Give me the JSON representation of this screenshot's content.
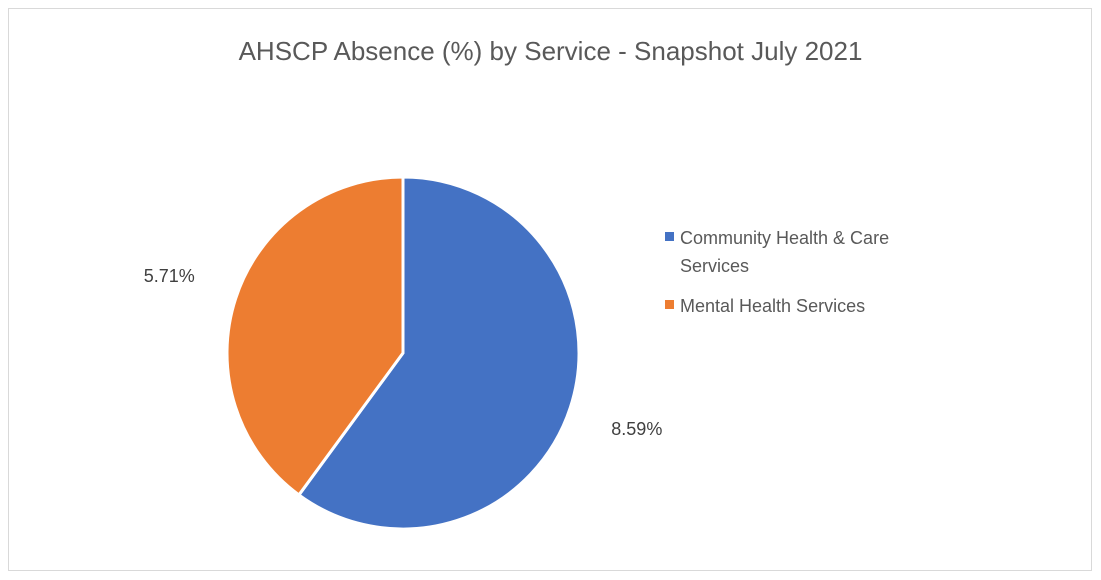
{
  "chart_data": {
    "type": "pie",
    "title": "AHSCP Absence (%) by Service - Snapshot July 2021",
    "categories": [
      "Community Health & Care Services",
      "Mental Health Services"
    ],
    "values": [
      8.59,
      5.71
    ],
    "data_labels": [
      "8.59%",
      "5.71%"
    ],
    "colors": [
      "#4472c4",
      "#ed7d31"
    ],
    "legend_placement": "right"
  }
}
